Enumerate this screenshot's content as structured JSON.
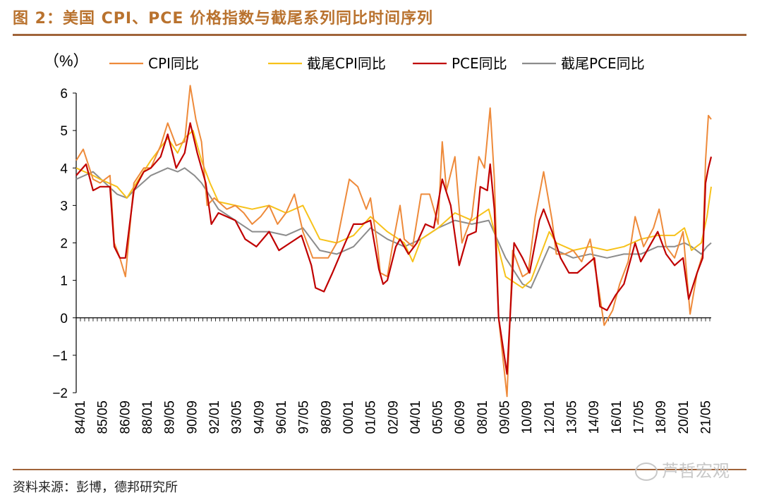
{
  "header": {
    "title": "图 2：美国 CPI、PCE 价格指数与截尾系列同比时间序列"
  },
  "footer": {
    "source": "资料来源：彭博，德邦研究所",
    "watermark": "芦哲宏观"
  },
  "colors": {
    "cpi": "#ee8a3a",
    "trim_cpi": "#f7c21a",
    "pce": "#c00000",
    "trim_pce": "#8c8c8c"
  },
  "chart_data": {
    "type": "line",
    "ylabel": "（%）",
    "ylim": [
      -2,
      6
    ],
    "yticks": [
      "6",
      "5",
      "4",
      "3",
      "2",
      "1",
      "0",
      "−1",
      "−2"
    ],
    "xtick_labels": [
      "84/01",
      "85/05",
      "86/09",
      "88/01",
      "89/05",
      "90/09",
      "92/01",
      "93/05",
      "94/09",
      "96/01",
      "97/05",
      "98/09",
      "00/01",
      "01/05",
      "02/09",
      "04/01",
      "05/05",
      "06/09",
      "08/01",
      "09/05",
      "10/09",
      "12/01",
      "13/05",
      "14/09",
      "16/01",
      "17/05",
      "18/09",
      "20/01",
      "21/05"
    ],
    "x_start": "1984-01",
    "x_end": "2021-08",
    "series": [
      {
        "name": "CPI同比",
        "key": "cpi",
        "points": [
          [
            "1984-01",
            4.2
          ],
          [
            "1984-06",
            4.5
          ],
          [
            "1985-01",
            3.7
          ],
          [
            "1985-06",
            3.6
          ],
          [
            "1986-01",
            3.8
          ],
          [
            "1986-04",
            2.0
          ],
          [
            "1986-08",
            1.6
          ],
          [
            "1986-12",
            1.1
          ],
          [
            "1987-06",
            3.6
          ],
          [
            "1988-01",
            4.0
          ],
          [
            "1988-06",
            4.0
          ],
          [
            "1989-01",
            4.6
          ],
          [
            "1989-06",
            5.2
          ],
          [
            "1989-12",
            4.6
          ],
          [
            "1990-06",
            4.7
          ],
          [
            "1990-10",
            6.2
          ],
          [
            "1991-02",
            5.3
          ],
          [
            "1991-06",
            4.7
          ],
          [
            "1991-10",
            3.0
          ],
          [
            "1992-03",
            3.2
          ],
          [
            "1992-12",
            2.9
          ],
          [
            "1993-06",
            3.0
          ],
          [
            "1993-12",
            2.8
          ],
          [
            "1994-06",
            2.5
          ],
          [
            "1994-12",
            2.7
          ],
          [
            "1995-06",
            3.0
          ],
          [
            "1995-12",
            2.5
          ],
          [
            "1996-06",
            2.8
          ],
          [
            "1996-12",
            3.3
          ],
          [
            "1997-06",
            2.3
          ],
          [
            "1998-01",
            1.6
          ],
          [
            "1998-12",
            1.6
          ],
          [
            "1999-06",
            2.0
          ],
          [
            "2000-03",
            3.7
          ],
          [
            "2000-09",
            3.5
          ],
          [
            "2001-03",
            2.9
          ],
          [
            "2001-06",
            3.2
          ],
          [
            "2001-11",
            1.9
          ],
          [
            "2002-01",
            1.2
          ],
          [
            "2002-06",
            1.1
          ],
          [
            "2002-10",
            2.0
          ],
          [
            "2003-03",
            3.0
          ],
          [
            "2003-06",
            2.1
          ],
          [
            "2003-12",
            1.9
          ],
          [
            "2004-06",
            3.3
          ],
          [
            "2004-12",
            3.3
          ],
          [
            "2005-06",
            2.5
          ],
          [
            "2005-09",
            4.7
          ],
          [
            "2005-12",
            3.4
          ],
          [
            "2006-06",
            4.3
          ],
          [
            "2006-11",
            2.0
          ],
          [
            "2007-06",
            2.7
          ],
          [
            "2007-11",
            4.3
          ],
          [
            "2008-03",
            4.0
          ],
          [
            "2008-07",
            5.6
          ],
          [
            "2008-10",
            3.7
          ],
          [
            "2009-01",
            0.0
          ],
          [
            "2009-07",
            -2.1
          ],
          [
            "2009-11",
            1.8
          ],
          [
            "2010-06",
            1.1
          ],
          [
            "2010-10",
            1.2
          ],
          [
            "2011-03",
            2.7
          ],
          [
            "2011-09",
            3.9
          ],
          [
            "2012-03",
            2.6
          ],
          [
            "2012-06",
            1.7
          ],
          [
            "2012-12",
            1.7
          ],
          [
            "2013-06",
            1.8
          ],
          [
            "2013-12",
            1.5
          ],
          [
            "2014-06",
            2.1
          ],
          [
            "2014-12",
            0.8
          ],
          [
            "2015-04",
            -0.2
          ],
          [
            "2015-10",
            0.2
          ],
          [
            "2016-03",
            0.9
          ],
          [
            "2016-09",
            1.5
          ],
          [
            "2017-02",
            2.7
          ],
          [
            "2017-08",
            1.9
          ],
          [
            "2018-03",
            2.4
          ],
          [
            "2018-07",
            2.9
          ],
          [
            "2018-12",
            1.9
          ],
          [
            "2019-06",
            1.6
          ],
          [
            "2019-12",
            2.3
          ],
          [
            "2020-05",
            0.1
          ],
          [
            "2020-10",
            1.2
          ],
          [
            "2021-02",
            1.7
          ],
          [
            "2021-04",
            4.2
          ],
          [
            "2021-06",
            5.4
          ],
          [
            "2021-08",
            5.3
          ]
        ]
      },
      {
        "name": "截尾CPI同比",
        "key": "trim_cpi",
        "points": [
          [
            "1984-01",
            4.0
          ],
          [
            "1985-01",
            3.8
          ],
          [
            "1985-06",
            3.7
          ],
          [
            "1986-06",
            3.5
          ],
          [
            "1987-01",
            3.2
          ],
          [
            "1987-06",
            3.5
          ],
          [
            "1988-06",
            4.2
          ],
          [
            "1989-06",
            4.8
          ],
          [
            "1990-01",
            4.4
          ],
          [
            "1990-06",
            4.8
          ],
          [
            "1990-12",
            5.0
          ],
          [
            "1991-06",
            4.2
          ],
          [
            "1991-12",
            3.6
          ],
          [
            "1992-06",
            3.1
          ],
          [
            "1993-06",
            3.0
          ],
          [
            "1994-06",
            2.9
          ],
          [
            "1995-06",
            3.0
          ],
          [
            "1996-06",
            2.8
          ],
          [
            "1997-06",
            3.0
          ],
          [
            "1998-06",
            2.1
          ],
          [
            "1999-06",
            2.0
          ],
          [
            "2000-06",
            2.2
          ],
          [
            "2001-06",
            2.7
          ],
          [
            "2002-06",
            2.3
          ],
          [
            "2003-06",
            2.0
          ],
          [
            "2003-12",
            1.5
          ],
          [
            "2004-06",
            2.1
          ],
          [
            "2005-06",
            2.4
          ],
          [
            "2006-06",
            2.8
          ],
          [
            "2007-06",
            2.6
          ],
          [
            "2008-06",
            2.9
          ],
          [
            "2009-06",
            1.1
          ],
          [
            "2010-06",
            0.8
          ],
          [
            "2010-12",
            1.0
          ],
          [
            "2011-06",
            1.6
          ],
          [
            "2012-01",
            2.3
          ],
          [
            "2012-06",
            2.0
          ],
          [
            "2013-06",
            1.8
          ],
          [
            "2014-06",
            1.9
          ],
          [
            "2015-06",
            1.8
          ],
          [
            "2016-06",
            1.9
          ],
          [
            "2017-06",
            2.1
          ],
          [
            "2018-06",
            2.2
          ],
          [
            "2019-06",
            2.2
          ],
          [
            "2020-01",
            2.4
          ],
          [
            "2020-06",
            1.8
          ],
          [
            "2021-01",
            2.0
          ],
          [
            "2021-05",
            2.7
          ],
          [
            "2021-08",
            3.5
          ]
        ]
      },
      {
        "name": "PCE同比",
        "key": "pce",
        "points": [
          [
            "1984-01",
            3.8
          ],
          [
            "1984-08",
            4.1
          ],
          [
            "1985-01",
            3.4
          ],
          [
            "1985-06",
            3.5
          ],
          [
            "1986-01",
            3.5
          ],
          [
            "1986-04",
            1.9
          ],
          [
            "1986-08",
            1.6
          ],
          [
            "1986-12",
            1.6
          ],
          [
            "1987-06",
            3.4
          ],
          [
            "1988-01",
            3.9
          ],
          [
            "1988-06",
            4.0
          ],
          [
            "1989-01",
            4.3
          ],
          [
            "1989-06",
            4.9
          ],
          [
            "1989-12",
            4.0
          ],
          [
            "1990-06",
            4.4
          ],
          [
            "1990-10",
            5.2
          ],
          [
            "1991-03",
            4.4
          ],
          [
            "1991-09",
            3.6
          ],
          [
            "1992-01",
            2.5
          ],
          [
            "1992-06",
            2.8
          ],
          [
            "1993-06",
            2.6
          ],
          [
            "1994-01",
            2.1
          ],
          [
            "1994-09",
            1.9
          ],
          [
            "1995-06",
            2.3
          ],
          [
            "1996-01",
            1.8
          ],
          [
            "1996-09",
            2.0
          ],
          [
            "1997-05",
            2.2
          ],
          [
            "1997-12",
            1.4
          ],
          [
            "1998-03",
            0.8
          ],
          [
            "1998-09",
            0.7
          ],
          [
            "1999-03",
            1.2
          ],
          [
            "1999-12",
            2.0
          ],
          [
            "2000-06",
            2.5
          ],
          [
            "2000-12",
            2.5
          ],
          [
            "2001-06",
            2.6
          ],
          [
            "2001-12",
            1.3
          ],
          [
            "2002-03",
            0.9
          ],
          [
            "2002-06",
            1.0
          ],
          [
            "2002-12",
            1.9
          ],
          [
            "2003-03",
            2.1
          ],
          [
            "2003-09",
            1.7
          ],
          [
            "2004-03",
            2.0
          ],
          [
            "2004-09",
            2.5
          ],
          [
            "2005-03",
            2.4
          ],
          [
            "2005-09",
            3.7
          ],
          [
            "2006-03",
            3.0
          ],
          [
            "2006-09",
            1.4
          ],
          [
            "2007-03",
            2.2
          ],
          [
            "2007-09",
            2.3
          ],
          [
            "2007-12",
            3.5
          ],
          [
            "2008-05",
            3.4
          ],
          [
            "2008-07",
            4.1
          ],
          [
            "2008-10",
            2.9
          ],
          [
            "2009-01",
            0.0
          ],
          [
            "2009-07",
            -1.5
          ],
          [
            "2009-12",
            2.0
          ],
          [
            "2010-06",
            1.6
          ],
          [
            "2010-11",
            1.2
          ],
          [
            "2011-06",
            2.6
          ],
          [
            "2011-09",
            2.9
          ],
          [
            "2012-03",
            2.3
          ],
          [
            "2012-09",
            1.6
          ],
          [
            "2013-03",
            1.2
          ],
          [
            "2013-09",
            1.2
          ],
          [
            "2014-03",
            1.4
          ],
          [
            "2014-09",
            1.6
          ],
          [
            "2015-01",
            0.3
          ],
          [
            "2015-06",
            0.2
          ],
          [
            "2015-12",
            0.6
          ],
          [
            "2016-06",
            0.9
          ],
          [
            "2017-02",
            2.0
          ],
          [
            "2017-06",
            1.5
          ],
          [
            "2018-06",
            2.3
          ],
          [
            "2018-12",
            1.7
          ],
          [
            "2019-06",
            1.4
          ],
          [
            "2019-12",
            1.6
          ],
          [
            "2020-04",
            0.5
          ],
          [
            "2020-10",
            1.2
          ],
          [
            "2021-02",
            1.6
          ],
          [
            "2021-04",
            3.6
          ],
          [
            "2021-06",
            4.0
          ],
          [
            "2021-08",
            4.3
          ]
        ]
      },
      {
        "name": "截尾PCE同比",
        "key": "trim_pce",
        "points": [
          [
            "1984-01",
            3.7
          ],
          [
            "1985-01",
            3.9
          ],
          [
            "1986-06",
            3.3
          ],
          [
            "1987-01",
            3.2
          ],
          [
            "1987-06",
            3.4
          ],
          [
            "1988-06",
            3.8
          ],
          [
            "1989-06",
            4.0
          ],
          [
            "1990-01",
            3.9
          ],
          [
            "1990-06",
            4.0
          ],
          [
            "1991-01",
            3.8
          ],
          [
            "1991-06",
            3.6
          ],
          [
            "1992-06",
            2.9
          ],
          [
            "1993-06",
            2.6
          ],
          [
            "1994-06",
            2.3
          ],
          [
            "1995-06",
            2.3
          ],
          [
            "1996-06",
            2.2
          ],
          [
            "1997-06",
            2.4
          ],
          [
            "1998-06",
            1.8
          ],
          [
            "1999-06",
            1.7
          ],
          [
            "2000-06",
            1.9
          ],
          [
            "2001-06",
            2.4
          ],
          [
            "2002-06",
            2.1
          ],
          [
            "2003-06",
            1.9
          ],
          [
            "2004-06",
            2.1
          ],
          [
            "2005-06",
            2.4
          ],
          [
            "2006-06",
            2.6
          ],
          [
            "2007-06",
            2.5
          ],
          [
            "2008-06",
            2.6
          ],
          [
            "2009-06",
            1.6
          ],
          [
            "2010-06",
            0.9
          ],
          [
            "2010-12",
            0.8
          ],
          [
            "2011-06",
            1.3
          ],
          [
            "2012-01",
            1.9
          ],
          [
            "2012-06",
            1.8
          ],
          [
            "2013-06",
            1.6
          ],
          [
            "2014-06",
            1.7
          ],
          [
            "2015-06",
            1.6
          ],
          [
            "2016-06",
            1.7
          ],
          [
            "2017-06",
            1.7
          ],
          [
            "2018-06",
            1.9
          ],
          [
            "2019-06",
            1.9
          ],
          [
            "2020-01",
            2.0
          ],
          [
            "2020-06",
            1.9
          ],
          [
            "2021-01",
            1.7
          ],
          [
            "2021-05",
            1.9
          ],
          [
            "2021-08",
            2.0
          ]
        ]
      }
    ]
  }
}
